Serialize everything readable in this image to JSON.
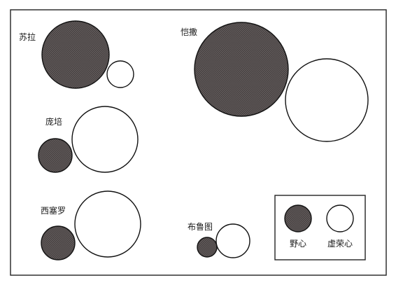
{
  "colors": {
    "ambition_fill": "#4a4444",
    "vanity_fill": "#ffffff",
    "stroke": "#111111"
  },
  "people": [
    {
      "name": "苏拉",
      "ambition": "large",
      "vanity": "small"
    },
    {
      "name": "庞培",
      "ambition": "small",
      "vanity": "large"
    },
    {
      "name": "西塞罗",
      "ambition": "small",
      "vanity": "large"
    },
    {
      "name": "恺撒",
      "ambition": "large",
      "vanity": "large"
    },
    {
      "name": "布鲁图",
      "ambition": "small",
      "vanity": "medium"
    }
  ],
  "legend": {
    "ambition_label": "野心",
    "vanity_label": "虚荣心"
  }
}
